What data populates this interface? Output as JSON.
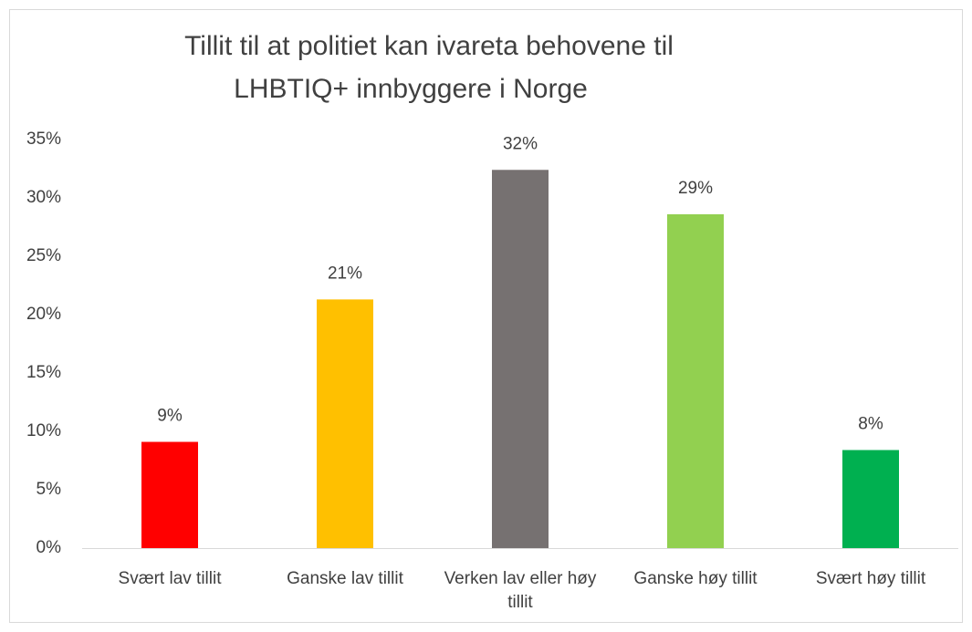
{
  "chart_data": {
    "type": "bar",
    "title": [
      "Tillit til at politiet kan ivareta behovene til",
      "LHBTIQ+ innbyggere i Norge"
    ],
    "categories": [
      "Svært lav tillit",
      "Ganske lav tillit",
      "Verken lav eller høy tillit",
      "Ganske høy tillit",
      "Svært høy tillit"
    ],
    "values": [
      9.1,
      21.3,
      32.4,
      28.6,
      8.4
    ],
    "value_labels": [
      "9%",
      "21%",
      "32%",
      "29%",
      "8%"
    ],
    "colors": [
      "#ff0000",
      "#ffc000",
      "#767171",
      "#92d050",
      "#00b050"
    ],
    "ylim": [
      0,
      35
    ],
    "yticks": [
      {
        "value": 0,
        "label": "0%"
      },
      {
        "value": 5,
        "label": "5%"
      },
      {
        "value": 10,
        "label": "10%"
      },
      {
        "value": 15,
        "label": "15%"
      },
      {
        "value": 20,
        "label": "20%"
      },
      {
        "value": 25,
        "label": "25%"
      },
      {
        "value": 30,
        "label": "30%"
      },
      {
        "value": 35,
        "label": "35%"
      }
    ],
    "grid": false
  }
}
